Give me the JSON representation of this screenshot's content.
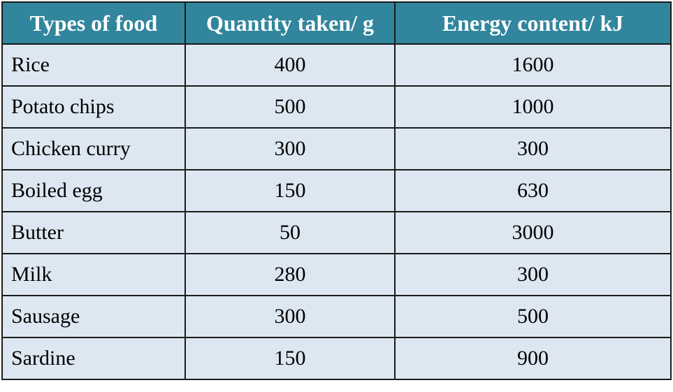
{
  "table": {
    "headers": [
      "Types of food",
      "Quantity taken/ g",
      "Energy content/ kJ"
    ],
    "rows": [
      [
        "Rice",
        "400",
        "1600"
      ],
      [
        "Potato chips",
        "500",
        "1000"
      ],
      [
        "Chicken curry",
        "300",
        "300"
      ],
      [
        "Boiled egg",
        "150",
        "630"
      ],
      [
        "Butter",
        "50",
        "3000"
      ],
      [
        "Milk",
        "280",
        "300"
      ],
      [
        "Sausage",
        "300",
        "500"
      ],
      [
        "Sardine",
        "150",
        "900"
      ]
    ]
  },
  "colors": {
    "header_background": "#31859c",
    "header_text": "#ffffff",
    "cell_background": "#dde7f1",
    "border": "#1a1a1a"
  }
}
